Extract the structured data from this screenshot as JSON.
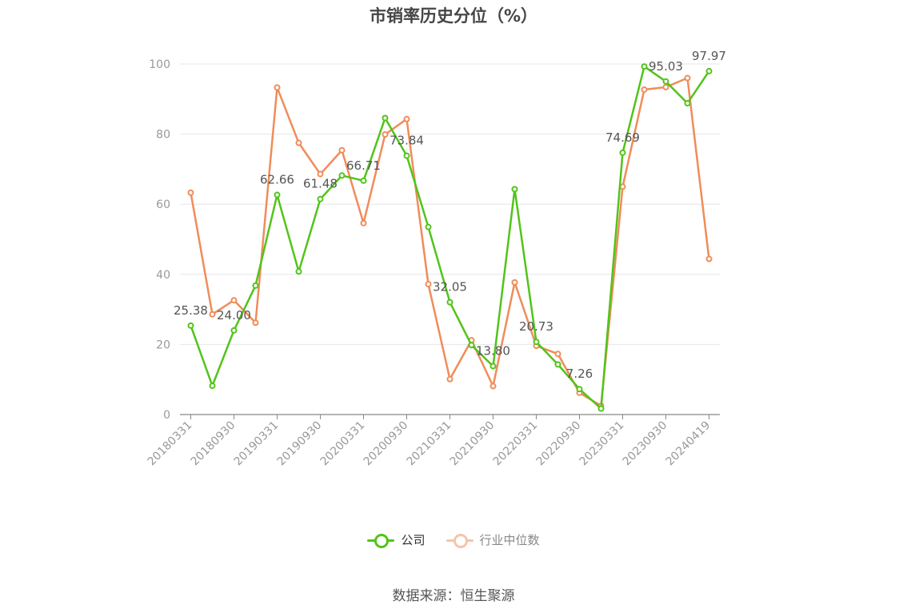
{
  "chart_data": {
    "type": "line",
    "title": "市销率历史分位（%）",
    "ylim": [
      0,
      100
    ],
    "yticks": [
      0,
      20,
      40,
      60,
      80,
      100
    ],
    "grid": true,
    "legend_position": "bottom",
    "x": [
      "20180331",
      "20180630",
      "20180930",
      "20181231",
      "20190331",
      "20190630",
      "20190930",
      "20191231",
      "20200331",
      "20200630",
      "20200930",
      "20201231",
      "20210331",
      "20210630",
      "20210930",
      "20211231",
      "20220331",
      "20220630",
      "20220930",
      "20221231",
      "20230331",
      "20230630",
      "20230930",
      "20231231",
      "20240419"
    ],
    "xtick_labels": [
      "20180331",
      "20180930",
      "20190331",
      "20190930",
      "20200331",
      "20200930",
      "20210331",
      "20210930",
      "20220331",
      "20220930",
      "20230331",
      "20230930",
      "20240419"
    ],
    "series": [
      {
        "name": "公司",
        "color": "#52c41a",
        "values": [
          25.38,
          8.2,
          24.0,
          36.8,
          62.66,
          40.8,
          61.48,
          68.2,
          66.71,
          84.6,
          73.84,
          53.5,
          32.05,
          19.8,
          13.8,
          64.3,
          20.73,
          14.3,
          7.26,
          1.7,
          74.69,
          99.3,
          95.03,
          88.8,
          97.97
        ],
        "labels": [
          "25.38",
          "",
          "24.00",
          "",
          "62.66",
          "",
          "61.48",
          "",
          "66.71",
          "",
          "73.84",
          "",
          "32.05",
          "",
          "13.80",
          "",
          "20.73",
          "",
          "7.26",
          "",
          "74.69",
          "",
          "95.03",
          "",
          "97.97"
        ]
      },
      {
        "name": "行业中位数",
        "color": "#f08c5a",
        "values": [
          63.3,
          28.6,
          32.6,
          26.2,
          93.3,
          77.5,
          68.6,
          75.4,
          54.6,
          79.9,
          84.3,
          37.2,
          10.1,
          21.2,
          8.1,
          37.7,
          19.6,
          17.3,
          6.2,
          2.5,
          65.0,
          92.7,
          93.4,
          96.0,
          44.4
        ]
      }
    ]
  },
  "legend": {
    "company": "公司",
    "industry": "行业中位数"
  },
  "source": "数据来源：恒生聚源"
}
